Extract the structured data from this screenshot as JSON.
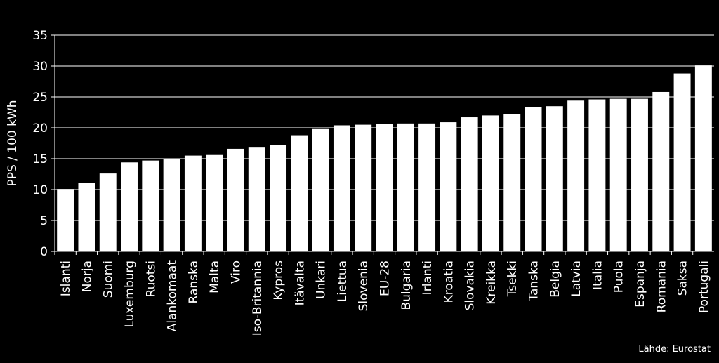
{
  "chart_data": {
    "type": "bar",
    "ylabel": "PPS / 100 kWh",
    "xlabel": "",
    "ylim": [
      0,
      35
    ],
    "yticks": [
      0,
      5,
      10,
      15,
      20,
      25,
      30,
      35
    ],
    "grid": true,
    "categories": [
      "Islanti",
      "Norja",
      "Suomi",
      "Luxemburg",
      "Ruotsi",
      "Alankomaat",
      "Ranska",
      "Malta",
      "Viro",
      "Iso-Britannia",
      "Kypros",
      "Itävalta",
      "Unkari",
      "Liettua",
      "Slovenia",
      "EU-28",
      "Bulgaria",
      "Irlanti",
      "Kroatia",
      "Slovakia",
      "Kreikka",
      "Tsekki",
      "Tanska",
      "Belgia",
      "Latvia",
      "Italia",
      "Puola",
      "Espanja",
      "Romania",
      "Saksa",
      "Portugali"
    ],
    "values": [
      10.1,
      11.1,
      12.6,
      14.4,
      14.7,
      15.0,
      15.5,
      15.6,
      16.6,
      16.8,
      17.2,
      18.8,
      19.8,
      20.4,
      20.5,
      20.6,
      20.7,
      20.7,
      20.9,
      21.7,
      22.0,
      22.2,
      23.4,
      23.5,
      24.4,
      24.6,
      24.7,
      24.7,
      25.8,
      28.8,
      30.1
    ],
    "bar_color": "#ffffff",
    "background": "#000000",
    "grid_color": "#ffffff"
  },
  "source_note": "Lähde: Eurostat"
}
